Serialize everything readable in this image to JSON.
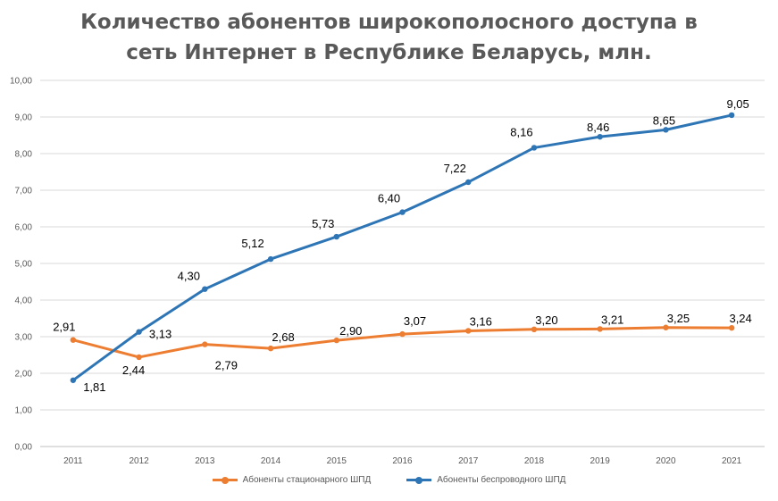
{
  "chart_data": {
    "type": "line",
    "title": "Количество абонентов широкополосного доступа в сеть Интернет в Республике Беларусь, млн.",
    "title_lines": [
      "Количество абонентов широкополосного доступа в",
      "сеть Интернет в Республике Беларусь, млн."
    ],
    "xlabel": "",
    "ylabel": "",
    "categories": [
      "2011",
      "2012",
      "2013",
      "2014",
      "2015",
      "2016",
      "2017",
      "2018",
      "2019",
      "2020",
      "2021"
    ],
    "ylim": [
      0,
      10
    ],
    "yticks": [
      "0,00",
      "1,00",
      "2,00",
      "3,00",
      "4,00",
      "5,00",
      "6,00",
      "7,00",
      "8,00",
      "9,00",
      "10,00"
    ],
    "grid": true,
    "legend_position": "bottom",
    "series": [
      {
        "name": "Абоненты стационарного ШПД",
        "color": "#ED7D31",
        "values": [
          2.91,
          2.44,
          2.79,
          2.68,
          2.9,
          3.07,
          3.16,
          3.2,
          3.21,
          3.25,
          3.24
        ],
        "labels": [
          "2,91",
          "2,44",
          "2,79",
          "2,68",
          "2,90",
          "3,07",
          "3,16",
          "3,20",
          "3,21",
          "3,25",
          "3,24"
        ]
      },
      {
        "name": "Абоненты беспроводного ШПД",
        "color": "#2E75B6",
        "values": [
          1.81,
          3.13,
          4.3,
          5.12,
          5.73,
          6.4,
          7.22,
          8.16,
          8.46,
          8.65,
          9.05
        ],
        "labels": [
          "1,81",
          "3,13",
          "4,30",
          "5,12",
          "5,73",
          "6,40",
          "7,22",
          "8,16",
          "8,46",
          "8,65",
          "9,05"
        ]
      }
    ]
  }
}
